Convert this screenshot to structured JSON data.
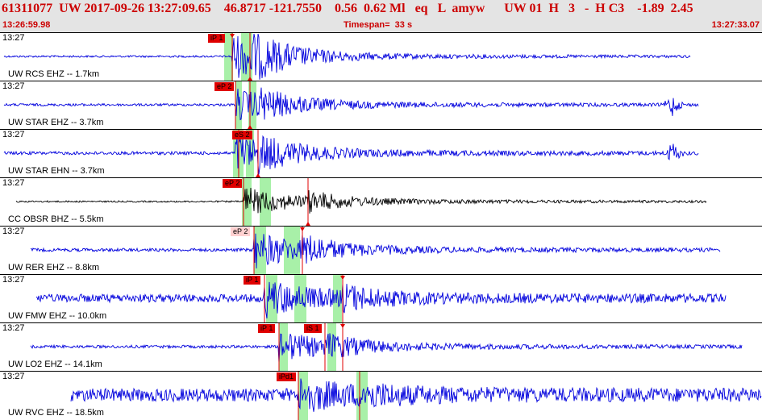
{
  "header": {
    "title_line": "61311077  UW 2017-09-26 13:27:09.65    46.8717 -121.7550    0.56  0.62 Ml   eq   L  amyw      UW 01  H   3   -  H C3    -1.89  2.45",
    "start_time": "13:26:59.98",
    "timespan": "Timespan=  33 s",
    "end_time": "13:27:33.07"
  },
  "colors": {
    "header_text": "#cc0000",
    "header_bg": "#e4e4e4",
    "trace": "#0000dd",
    "trace_alt": "#000000",
    "pick": "#e00000",
    "pick_faded": "#ffd0d0",
    "window_highlight": "#a8f0a8"
  },
  "panels": [
    {
      "time": "13:27",
      "label": "UW RCS EHZ -- 1.7km",
      "color": "#0000dd",
      "pick": "iP 1",
      "faded": false,
      "amp": 1.0
    },
    {
      "time": "13:27",
      "label": "UW STAR EHZ -- 3.7km",
      "color": "#0000dd",
      "pick": "eP 2",
      "faded": false,
      "amp": 1.0
    },
    {
      "time": "13:27",
      "label": "UW STAR EHN -- 3.7km",
      "color": "#0000dd",
      "pick": "eS 2",
      "faded": false,
      "amp": 1.0
    },
    {
      "time": "13:27",
      "label": "CC OBSR BHZ -- 5.5km",
      "color": "#000000",
      "pick": "eP 2",
      "faded": false,
      "amp": 1.0
    },
    {
      "time": "13:27",
      "label": "UW RER EHZ -- 8.8km",
      "color": "#0000dd",
      "pick": "eP 2",
      "faded": true,
      "amp": 1.0
    },
    {
      "time": "13:27",
      "label": "UW FMW EHZ -- 10.0km",
      "color": "#0000dd",
      "pick": "iP 1",
      "faded": false,
      "amp": 1.0
    },
    {
      "time": "13:27",
      "label": "UW LO2 EHZ -- 14.1km",
      "color": "#0000dd",
      "pick": "iP 1",
      "pick2": "iS 1",
      "faded": false,
      "amp": 1.0
    },
    {
      "time": "13:27",
      "label": "UW RVC EHZ -- 18.5km",
      "color": "#0000dd",
      "pick": "iPd1",
      "faded": false,
      "amp": 1.0
    }
  ]
}
